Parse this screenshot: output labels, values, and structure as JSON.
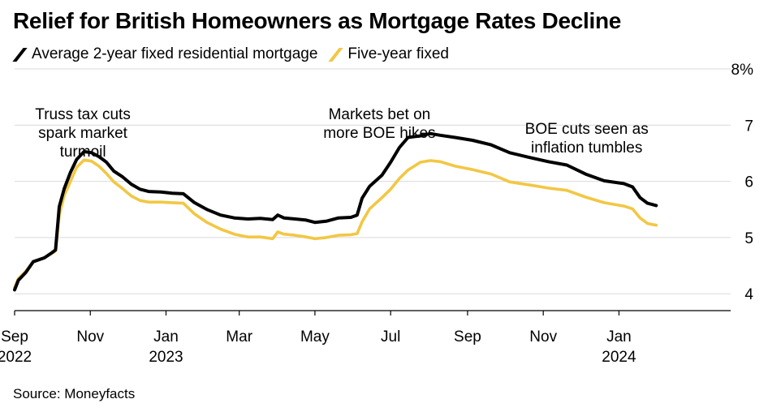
{
  "header": {
    "title": "Relief for British Homeowners as Mortgage Rates Decline"
  },
  "footer": {
    "source": "Source: Moneyfacts"
  },
  "colors": {
    "two_year": "#000000",
    "five_year": "#f2c744",
    "grid": "#d9d9d9",
    "axis": "#000000"
  },
  "chart_data": {
    "type": "line",
    "title": "Relief for British Homeowners as Mortgage Rates Decline",
    "xlabel": "",
    "ylabel": "",
    "xlim": [
      "2022-09-01",
      "2024-03-31"
    ],
    "ylim": [
      3.7,
      8
    ],
    "y_ticks": [
      {
        "value": 4,
        "label": "4"
      },
      {
        "value": 5,
        "label": "5"
      },
      {
        "value": 6,
        "label": "6"
      },
      {
        "value": 7,
        "label": "7"
      },
      {
        "value": 8,
        "label": "8%"
      }
    ],
    "x_ticks": [
      {
        "date": "2022-09-01",
        "label": "Sep",
        "year": "2022"
      },
      {
        "date": "2022-11-01",
        "label": "Nov",
        "year": ""
      },
      {
        "date": "2023-01-01",
        "label": "Jan",
        "year": "2023"
      },
      {
        "date": "2023-03-01",
        "label": "Mar",
        "year": ""
      },
      {
        "date": "2023-05-01",
        "label": "May",
        "year": ""
      },
      {
        "date": "2023-07-01",
        "label": "Jul",
        "year": ""
      },
      {
        "date": "2023-09-01",
        "label": "Sep",
        "year": ""
      },
      {
        "date": "2023-11-01",
        "label": "Nov",
        "year": ""
      },
      {
        "date": "2024-01-01",
        "label": "Jan",
        "year": "2024"
      }
    ],
    "grid": true,
    "legend_position": "top-left",
    "series": [
      {
        "name": "Average 2-year fixed residential mortgage",
        "color": "#000000",
        "points": [
          [
            "2022-09-01",
            4.07
          ],
          [
            "2022-09-04",
            4.24
          ],
          [
            "2022-09-10",
            4.38
          ],
          [
            "2022-09-16",
            4.57
          ],
          [
            "2022-09-25",
            4.64
          ],
          [
            "2022-10-01",
            4.73
          ],
          [
            "2022-10-04",
            4.78
          ],
          [
            "2022-10-07",
            5.55
          ],
          [
            "2022-10-11",
            5.87
          ],
          [
            "2022-10-16",
            6.16
          ],
          [
            "2022-10-21",
            6.39
          ],
          [
            "2022-10-27",
            6.53
          ],
          [
            "2022-11-02",
            6.51
          ],
          [
            "2022-11-08",
            6.44
          ],
          [
            "2022-11-14",
            6.34
          ],
          [
            "2022-11-20",
            6.18
          ],
          [
            "2022-11-27",
            6.08
          ],
          [
            "2022-12-04",
            5.95
          ],
          [
            "2022-12-11",
            5.86
          ],
          [
            "2022-12-18",
            5.82
          ],
          [
            "2022-12-28",
            5.81
          ],
          [
            "2023-01-06",
            5.79
          ],
          [
            "2023-01-15",
            5.78
          ],
          [
            "2023-01-24",
            5.62
          ],
          [
            "2023-02-03",
            5.5
          ],
          [
            "2023-02-14",
            5.4
          ],
          [
            "2023-02-25",
            5.35
          ],
          [
            "2023-03-08",
            5.33
          ],
          [
            "2023-03-18",
            5.34
          ],
          [
            "2023-03-28",
            5.32
          ],
          [
            "2023-04-01",
            5.4
          ],
          [
            "2023-04-06",
            5.35
          ],
          [
            "2023-04-15",
            5.33
          ],
          [
            "2023-04-24",
            5.31
          ],
          [
            "2023-05-01",
            5.27
          ],
          [
            "2023-05-10",
            5.29
          ],
          [
            "2023-05-20",
            5.35
          ],
          [
            "2023-05-30",
            5.36
          ],
          [
            "2023-06-04",
            5.4
          ],
          [
            "2023-06-08",
            5.7
          ],
          [
            "2023-06-14",
            5.91
          ],
          [
            "2023-06-24",
            6.11
          ],
          [
            "2023-07-01",
            6.34
          ],
          [
            "2023-07-08",
            6.6
          ],
          [
            "2023-07-15",
            6.78
          ],
          [
            "2023-07-25",
            6.81
          ],
          [
            "2023-08-02",
            6.85
          ],
          [
            "2023-08-10",
            6.82
          ],
          [
            "2023-08-22",
            6.78
          ],
          [
            "2023-09-05",
            6.73
          ],
          [
            "2023-09-20",
            6.65
          ],
          [
            "2023-10-05",
            6.51
          ],
          [
            "2023-10-20",
            6.43
          ],
          [
            "2023-11-05",
            6.35
          ],
          [
            "2023-11-20",
            6.29
          ],
          [
            "2023-12-05",
            6.13
          ],
          [
            "2023-12-20",
            6.01
          ],
          [
            "2024-01-05",
            5.96
          ],
          [
            "2024-01-12",
            5.9
          ],
          [
            "2024-01-18",
            5.71
          ],
          [
            "2024-01-24",
            5.61
          ],
          [
            "2024-01-31",
            5.57
          ]
        ]
      },
      {
        "name": "Five-year fixed",
        "color": "#f2c744",
        "points": [
          [
            "2022-09-01",
            4.11
          ],
          [
            "2022-09-04",
            4.27
          ],
          [
            "2022-09-10",
            4.4
          ],
          [
            "2022-09-16",
            4.57
          ],
          [
            "2022-09-25",
            4.64
          ],
          [
            "2022-10-01",
            4.72
          ],
          [
            "2022-10-04",
            4.76
          ],
          [
            "2022-10-07",
            5.4
          ],
          [
            "2022-10-11",
            5.75
          ],
          [
            "2022-10-16",
            6.0
          ],
          [
            "2022-10-21",
            6.25
          ],
          [
            "2022-10-27",
            6.38
          ],
          [
            "2022-11-02",
            6.36
          ],
          [
            "2022-11-08",
            6.27
          ],
          [
            "2022-11-14",
            6.14
          ],
          [
            "2022-11-20",
            5.99
          ],
          [
            "2022-11-27",
            5.87
          ],
          [
            "2022-12-04",
            5.74
          ],
          [
            "2022-12-11",
            5.66
          ],
          [
            "2022-12-18",
            5.63
          ],
          [
            "2022-12-28",
            5.63
          ],
          [
            "2023-01-06",
            5.62
          ],
          [
            "2023-01-15",
            5.61
          ],
          [
            "2023-01-24",
            5.42
          ],
          [
            "2023-02-03",
            5.27
          ],
          [
            "2023-02-14",
            5.15
          ],
          [
            "2023-02-25",
            5.06
          ],
          [
            "2023-03-08",
            5.01
          ],
          [
            "2023-03-18",
            5.01
          ],
          [
            "2023-03-28",
            4.98
          ],
          [
            "2023-04-01",
            5.1
          ],
          [
            "2023-04-06",
            5.06
          ],
          [
            "2023-04-15",
            5.04
          ],
          [
            "2023-04-24",
            5.01
          ],
          [
            "2023-05-01",
            4.98
          ],
          [
            "2023-05-10",
            5.0
          ],
          [
            "2023-05-20",
            5.04
          ],
          [
            "2023-05-30",
            5.05
          ],
          [
            "2023-06-04",
            5.07
          ],
          [
            "2023-06-08",
            5.28
          ],
          [
            "2023-06-14",
            5.51
          ],
          [
            "2023-06-24",
            5.71
          ],
          [
            "2023-07-01",
            5.86
          ],
          [
            "2023-07-08",
            6.05
          ],
          [
            "2023-07-15",
            6.2
          ],
          [
            "2023-07-25",
            6.34
          ],
          [
            "2023-08-02",
            6.37
          ],
          [
            "2023-08-10",
            6.35
          ],
          [
            "2023-08-22",
            6.27
          ],
          [
            "2023-09-05",
            6.21
          ],
          [
            "2023-09-20",
            6.13
          ],
          [
            "2023-10-05",
            5.99
          ],
          [
            "2023-10-20",
            5.94
          ],
          [
            "2023-11-05",
            5.88
          ],
          [
            "2023-11-20",
            5.84
          ],
          [
            "2023-12-05",
            5.72
          ],
          [
            "2023-12-20",
            5.62
          ],
          [
            "2024-01-05",
            5.56
          ],
          [
            "2024-01-12",
            5.51
          ],
          [
            "2024-01-18",
            5.35
          ],
          [
            "2024-01-24",
            5.25
          ],
          [
            "2024-01-31",
            5.22
          ]
        ]
      }
    ],
    "annotations": [
      {
        "lines": [
          "Truss tax cuts",
          "spark market",
          "turmoil"
        ],
        "date": "2022-10-26",
        "anchor": "middle"
      },
      {
        "lines": [
          "Markets bet on",
          "more BOE hikes"
        ],
        "date": "2023-06-22",
        "anchor": "middle"
      },
      {
        "lines": [
          "BOE cuts seen as",
          "inflation tumbles"
        ],
        "date": "2023-12-06",
        "anchor": "middle"
      }
    ]
  }
}
